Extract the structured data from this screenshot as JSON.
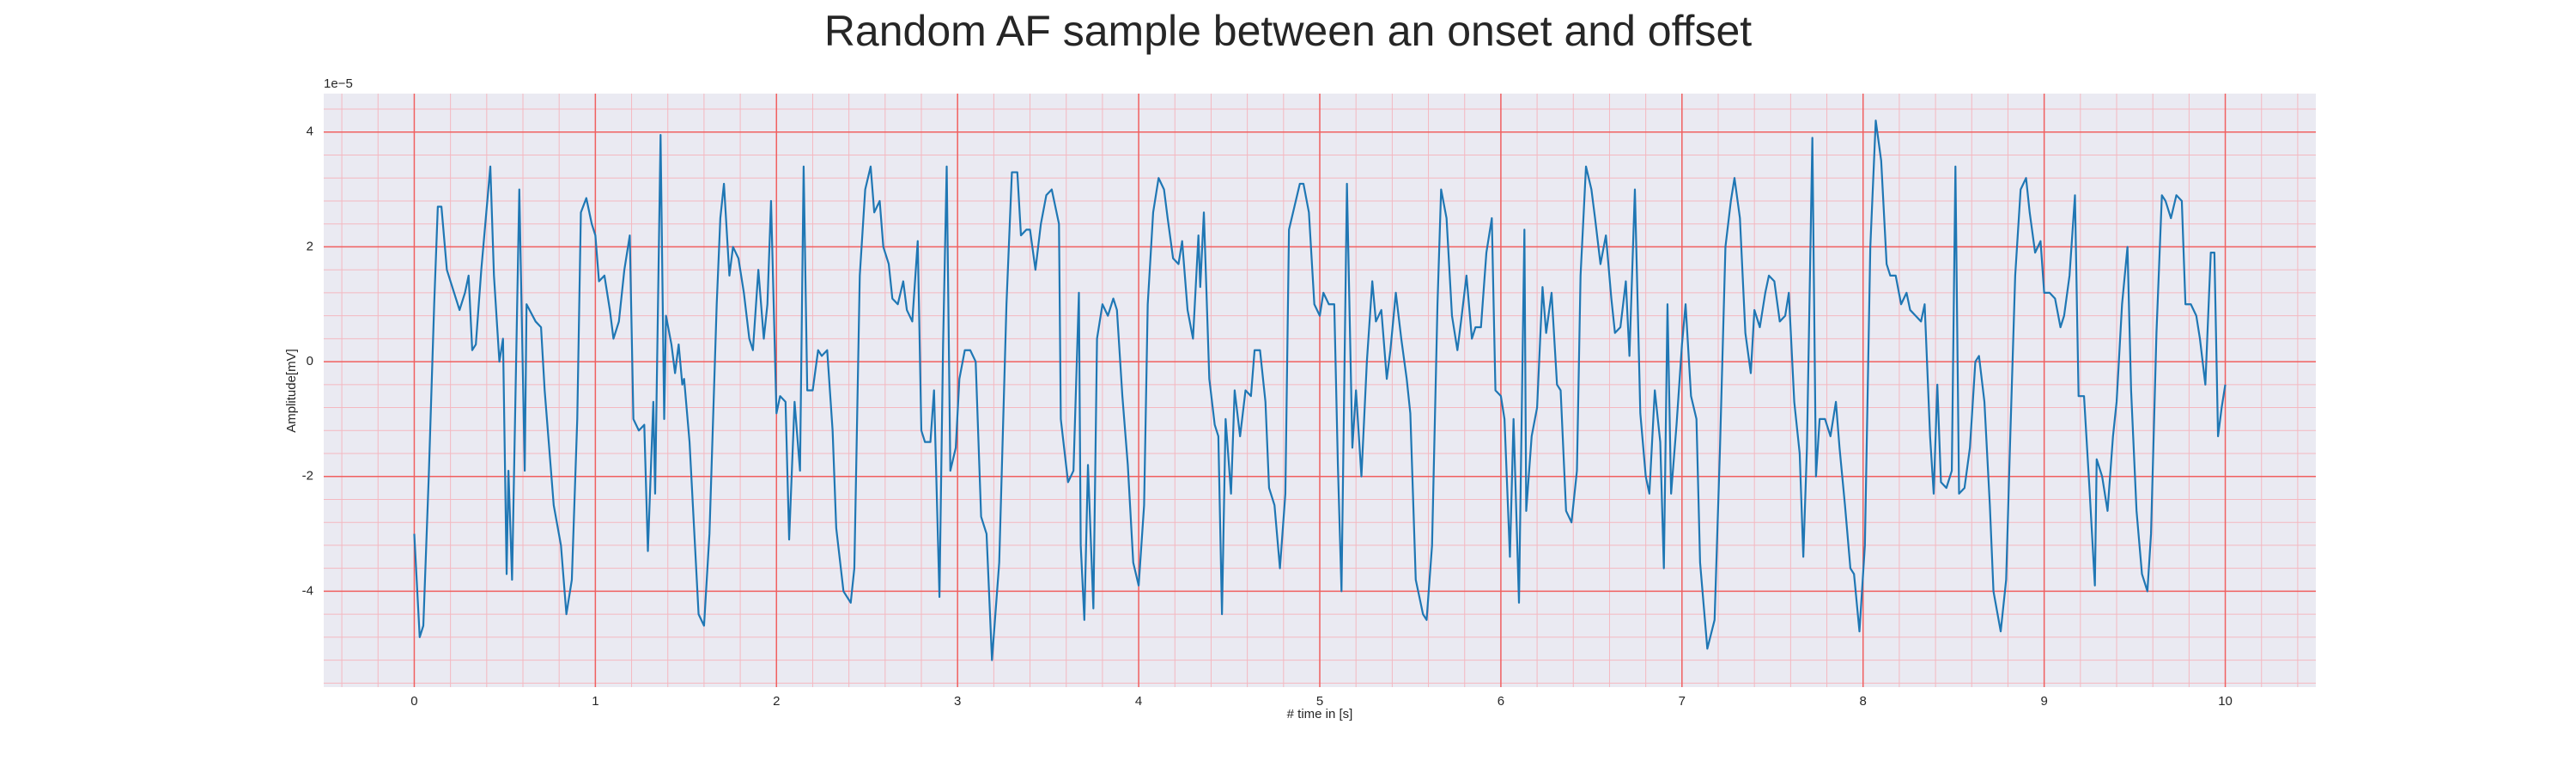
{
  "chart_data": {
    "type": "line",
    "title": "Random AF sample between an onset and offset",
    "x_label": "# time in [s]",
    "y_label": "Amplitude[mV]",
    "y_offset_label": "1e−5",
    "color": "#1f77b4",
    "grid": true,
    "minor_grid": true,
    "xlim": [
      -0.5,
      10.5
    ],
    "ylim": [
      -5.67,
      4.67
    ],
    "xticks": [
      0,
      1,
      2,
      3,
      4,
      5,
      6,
      7,
      8,
      9,
      10
    ],
    "yticks": [
      -4,
      -2,
      0,
      2,
      4
    ],
    "x": [
      0,
      0.03,
      0.05,
      0.08,
      0.11,
      0.13,
      0.15,
      0.18,
      0.23,
      0.25,
      0.28,
      0.3,
      0.32,
      0.34,
      0.37,
      0.42,
      0.44,
      0.47,
      0.49,
      0.51,
      0.52,
      0.54,
      0.58,
      0.61,
      0.62,
      0.67,
      0.7,
      0.72,
      0.77,
      0.81,
      0.84,
      0.87,
      0.9,
      0.92,
      0.95,
      0.98,
      1.0,
      1.02,
      1.05,
      1.08,
      1.1,
      1.13,
      1.16,
      1.19,
      1.21,
      1.24,
      1.27,
      1.29,
      1.32,
      1.33,
      1.36,
      1.38,
      1.39,
      1.42,
      1.44,
      1.46,
      1.48,
      1.49,
      1.52,
      1.57,
      1.6,
      1.63,
      1.67,
      1.69,
      1.71,
      1.74,
      1.76,
      1.79,
      1.82,
      1.85,
      1.87,
      1.9,
      1.93,
      1.95,
      1.97,
      2.0,
      2.02,
      2.05,
      2.07,
      2.1,
      2.13,
      2.15,
      2.17,
      2.2,
      2.23,
      2.25,
      2.28,
      2.31,
      2.33,
      2.37,
      2.41,
      2.43,
      2.46,
      2.49,
      2.52,
      2.54,
      2.57,
      2.59,
      2.62,
      2.64,
      2.67,
      2.7,
      2.72,
      2.75,
      2.78,
      2.8,
      2.82,
      2.85,
      2.87,
      2.9,
      2.92,
      2.94,
      2.96,
      2.99,
      3.01,
      3.04,
      3.07,
      3.1,
      3.13,
      3.16,
      3.19,
      3.23,
      3.27,
      3.3,
      3.33,
      3.35,
      3.38,
      3.4,
      3.43,
      3.46,
      3.49,
      3.52,
      3.56,
      3.57,
      3.61,
      3.64,
      3.67,
      3.68,
      3.7,
      3.72,
      3.75,
      3.77,
      3.8,
      3.83,
      3.86,
      3.88,
      3.91,
      3.94,
      3.97,
      4.0,
      4.03,
      4.05,
      4.08,
      4.11,
      4.14,
      4.16,
      4.19,
      4.22,
      4.24,
      4.27,
      4.3,
      4.33,
      4.34,
      4.36,
      4.39,
      4.42,
      4.44,
      4.46,
      4.48,
      4.51,
      4.53,
      4.56,
      4.59,
      4.62,
      4.64,
      4.67,
      4.7,
      4.72,
      4.75,
      4.78,
      4.81,
      4.83,
      4.86,
      4.89,
      4.91,
      4.94,
      4.97,
      5.0,
      5.02,
      5.05,
      5.08,
      5.1,
      5.12,
      5.15,
      5.18,
      5.2,
      5.23,
      5.26,
      5.29,
      5.31,
      5.34,
      5.37,
      5.39,
      5.42,
      5.45,
      5.48,
      5.5,
      5.53,
      5.57,
      5.59,
      5.62,
      5.65,
      5.67,
      5.7,
      5.73,
      5.76,
      5.78,
      5.81,
      5.84,
      5.86,
      5.89,
      5.92,
      5.95,
      5.97,
      6.0,
      6.02,
      6.05,
      6.07,
      6.1,
      6.13,
      6.14,
      6.17,
      6.2,
      6.23,
      6.25,
      6.28,
      6.31,
      6.33,
      6.36,
      6.39,
      6.42,
      6.44,
      6.47,
      6.5,
      6.52,
      6.55,
      6.58,
      6.61,
      6.63,
      6.66,
      6.69,
      6.71,
      6.74,
      6.77,
      6.8,
      6.82,
      6.85,
      6.88,
      6.9,
      6.92,
      6.94,
      6.97,
      7.0,
      7.02,
      7.05,
      7.08,
      7.1,
      7.14,
      7.18,
      7.21,
      7.24,
      7.27,
      7.29,
      7.32,
      7.35,
      7.38,
      7.4,
      7.43,
      7.46,
      7.48,
      7.51,
      7.54,
      7.57,
      7.59,
      7.62,
      7.65,
      7.67,
      7.69,
      7.72,
      7.74,
      7.76,
      7.79,
      7.82,
      7.85,
      7.87,
      7.9,
      7.93,
      7.95,
      7.98,
      8.01,
      8.04,
      8.07,
      8.1,
      8.13,
      8.15,
      8.18,
      8.21,
      8.24,
      8.26,
      8.29,
      8.32,
      8.34,
      8.37,
      8.39,
      8.41,
      8.43,
      8.46,
      8.49,
      8.51,
      8.53,
      8.56,
      8.59,
      8.62,
      8.64,
      8.67,
      8.7,
      8.72,
      8.76,
      8.79,
      8.81,
      8.84,
      8.87,
      8.9,
      8.92,
      8.95,
      8.98,
      9.0,
      9.03,
      9.06,
      9.09,
      9.11,
      9.14,
      9.17,
      9.19,
      9.22,
      9.25,
      9.28,
      9.29,
      9.32,
      9.35,
      9.38,
      9.4,
      9.43,
      9.46,
      9.48,
      9.51,
      9.54,
      9.57,
      9.59,
      9.62,
      9.65,
      9.67,
      9.7,
      9.73,
      9.76,
      9.78,
      9.81,
      9.84,
      9.86,
      9.89,
      9.92,
      9.94,
      9.96,
      9.98,
      10.0
    ],
    "values": [
      -3.0,
      -4.8,
      -4.6,
      -2.0,
      1.0,
      2.7,
      2.7,
      1.6,
      1.1,
      0.9,
      1.2,
      1.5,
      0.2,
      0.3,
      1.6,
      3.4,
      1.5,
      0.0,
      0.4,
      -3.7,
      -1.9,
      -3.8,
      3.0,
      -1.9,
      1.0,
      0.7,
      0.6,
      -0.5,
      -2.5,
      -3.2,
      -4.4,
      -3.8,
      -1.0,
      2.6,
      2.85,
      2.4,
      2.2,
      1.4,
      1.5,
      0.9,
      0.4,
      0.7,
      1.6,
      2.2,
      -1,
      -1.2,
      -1.1,
      -3.3,
      -0.7,
      -2.3,
      3.95,
      -1,
      0.8,
      0.3,
      -0.2,
      0.3,
      -0.4,
      -0.3,
      -1.4,
      -4.4,
      -4.6,
      -3,
      1,
      2.5,
      3.1,
      1.5,
      2.0,
      1.8,
      1.2,
      0.4,
      0.2,
      1.6,
      0.4,
      1.0,
      2.8,
      -0.9,
      -0.6,
      -0.7,
      -3.1,
      -0.7,
      -1.9,
      3.4,
      -0.5,
      -0.5,
      0.2,
      0.1,
      0.2,
      -1.2,
      -2.9,
      -4.0,
      -4.2,
      -3.6,
      1.5,
      3.0,
      3.4,
      2.6,
      2.8,
      2.0,
      1.7,
      1.1,
      1.0,
      1.4,
      0.9,
      0.7,
      2.1,
      -1.2,
      -1.4,
      -1.4,
      -0.5,
      -4.1,
      0.3,
      3.4,
      -1.9,
      -1.5,
      -0.3,
      0.2,
      0.2,
      0.0,
      -2.7,
      -3.0,
      -5.2,
      -3.5,
      1.0,
      3.3,
      3.3,
      2.2,
      2.3,
      2.3,
      1.6,
      2.4,
      2.9,
      3.0,
      2.4,
      -1.0,
      -2.1,
      -1.9,
      1.2,
      -3.2,
      -4.5,
      -1.8,
      -4.3,
      0.4,
      1.0,
      0.8,
      1.1,
      0.9,
      -0.6,
      -1.8,
      -3.5,
      -3.9,
      -2.5,
      1.0,
      2.6,
      3.2,
      3.0,
      2.5,
      1.8,
      1.7,
      2.1,
      0.9,
      0.4,
      2.2,
      1.3,
      2.6,
      -0.3,
      -1.1,
      -1.3,
      -4.4,
      -1.0,
      -2.3,
      -0.5,
      -1.3,
      -0.5,
      -0.6,
      0.2,
      0.2,
      -0.7,
      -2.2,
      -2.5,
      -3.6,
      -2.3,
      2.3,
      2.7,
      3.1,
      3.1,
      2.6,
      1.0,
      0.8,
      1.2,
      1.0,
      1.0,
      -1.8,
      -4.0,
      3.1,
      -1.5,
      -0.5,
      -2.0,
      0.0,
      1.4,
      0.7,
      0.9,
      -0.3,
      0.2,
      1.2,
      0.4,
      -0.3,
      -0.9,
      -3.8,
      -4.4,
      -4.5,
      -3.2,
      1.0,
      3.0,
      2.5,
      0.8,
      0.2,
      0.7,
      1.5,
      0.4,
      0.6,
      0.6,
      1.9,
      2.5,
      -0.5,
      -0.6,
      -1.0,
      -3.4,
      -1.0,
      -4.2,
      2.3,
      -2.6,
      -1.3,
      -0.8,
      1.3,
      0.5,
      1.2,
      -0.4,
      -0.5,
      -2.6,
      -2.8,
      -1.9,
      1.5,
      3.4,
      3.0,
      2.5,
      1.7,
      2.2,
      1.1,
      0.5,
      0.6,
      1.4,
      0.1,
      3.0,
      -0.9,
      -2.0,
      -2.3,
      -0.5,
      -1.4,
      -3.6,
      1.0,
      -2.3,
      -1.1,
      0.3,
      1.0,
      -0.6,
      -1.0,
      -3.5,
      -5.0,
      -4.5,
      -1.5,
      2.0,
      2.8,
      3.2,
      2.5,
      0.5,
      -0.2,
      0.9,
      0.6,
      1.2,
      1.5,
      1.4,
      0.7,
      0.8,
      1.2,
      -0.7,
      -1.6,
      -3.4,
      -1.5,
      3.9,
      -2.0,
      -1.0,
      -1.0,
      -1.3,
      -0.7,
      -1.5,
      -2.5,
      -3.6,
      -3.7,
      -4.7,
      -3.2,
      2.0,
      4.2,
      3.5,
      1.7,
      1.5,
      1.5,
      1.0,
      1.2,
      0.9,
      0.8,
      0.7,
      1.0,
      -1.3,
      -2.3,
      -0.4,
      -2.1,
      -2.2,
      -1.9,
      3.4,
      -2.3,
      -2.2,
      -1.5,
      0.0,
      0.1,
      -0.7,
      -2.5,
      -4.0,
      -4.7,
      -3.8,
      -1.6,
      1.5,
      3.0,
      3.2,
      2.6,
      1.9,
      2.1,
      1.2,
      1.2,
      1.1,
      0.6,
      0.8,
      1.5,
      2.9,
      -0.6,
      -0.6,
      -2.2,
      -3.9,
      -1.7,
      -2.0,
      -2.6,
      -1.3,
      -0.7,
      1.0,
      2.0,
      -0.5,
      -2.6,
      -3.7,
      -4.0,
      -3.0,
      0.5,
      2.9,
      2.8,
      2.5,
      2.9,
      2.8,
      1.0,
      1.0,
      0.8,
      0.4,
      -0.4,
      1.9,
      1.9,
      -1.3,
      -0.8,
      -0.4
    ]
  }
}
